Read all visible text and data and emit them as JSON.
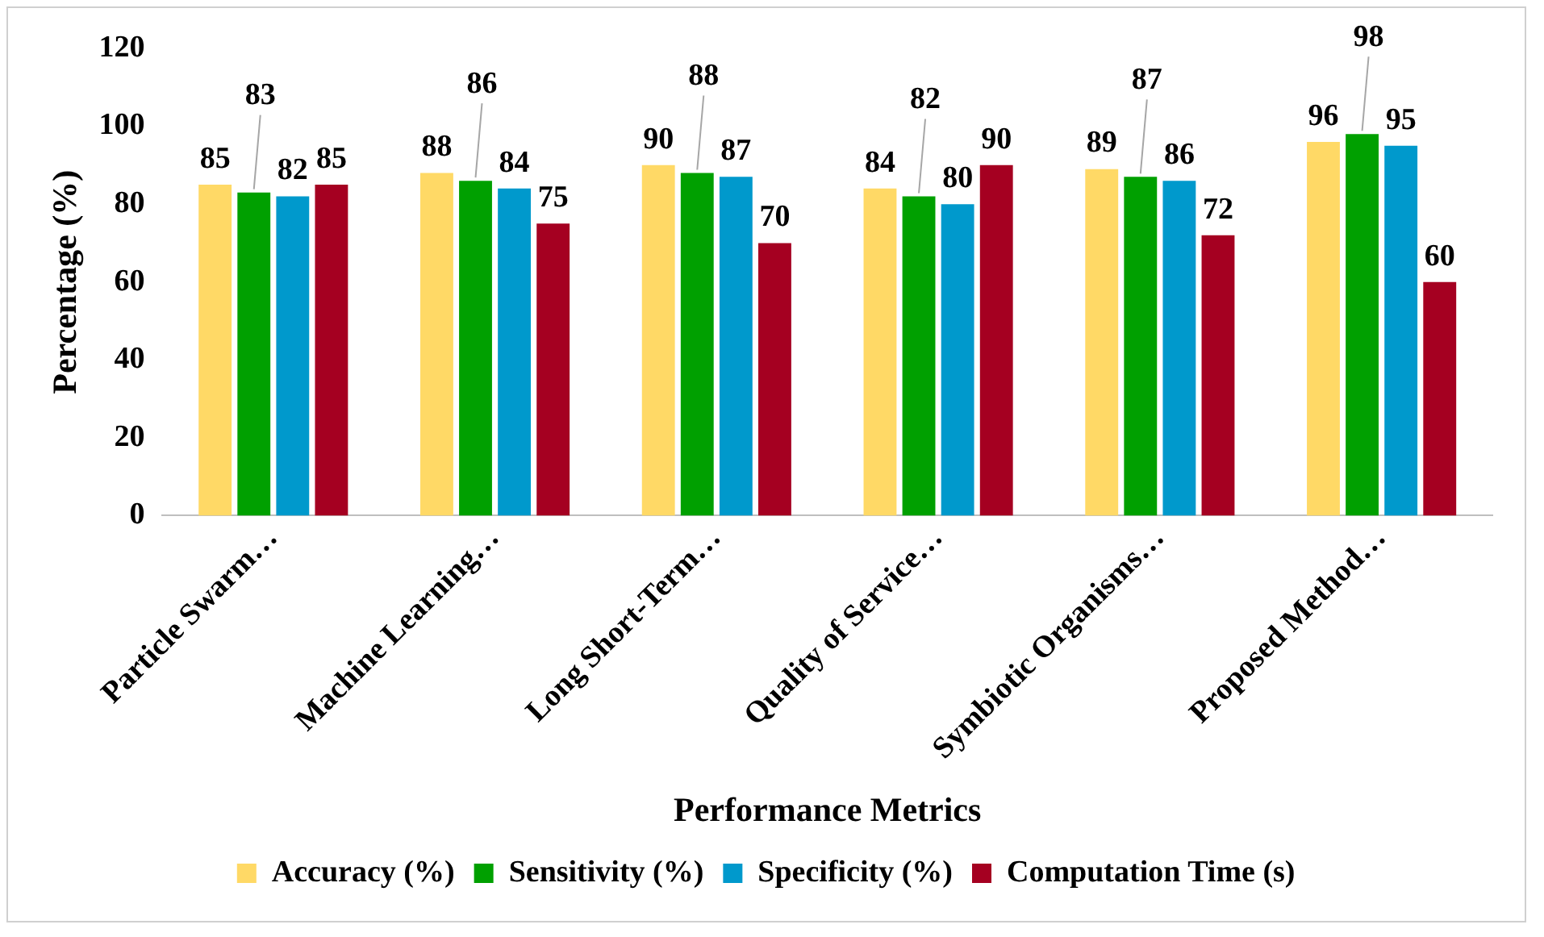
{
  "chart_data": {
    "type": "bar",
    "xlabel": "Performance Metrics",
    "ylabel": "Percentage (%)",
    "categories": [
      "Particle Swarm…",
      "Machine Learning…",
      "Long Short-Term…",
      "Quality of Service…",
      "Symbiotic Organisms…",
      "Proposed Method…"
    ],
    "series": [
      {
        "name": "Accuracy (%)",
        "color": "#ffd966",
        "values": [
          85,
          88,
          90,
          84,
          89,
          96
        ]
      },
      {
        "name": "Sensitivity (%)",
        "color": "#00a000",
        "values": [
          83,
          86,
          88,
          82,
          87,
          98
        ]
      },
      {
        "name": "Specificity (%)",
        "color": "#0099cc",
        "values": [
          82,
          84,
          87,
          80,
          86,
          95
        ]
      },
      {
        "name": "Computation Time (s)",
        "color": "#a50021",
        "values": [
          85,
          75,
          70,
          90,
          72,
          60
        ]
      }
    ],
    "ylim": [
      0,
      120
    ],
    "yticks": [
      0,
      20,
      40,
      60,
      80,
      100,
      120
    ],
    "grid": false,
    "legend": "bottom",
    "data_labels": true
  }
}
